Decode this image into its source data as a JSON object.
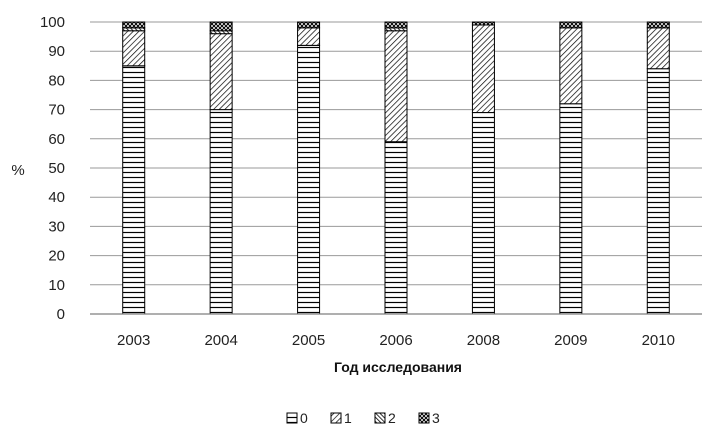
{
  "chart_data": {
    "type": "bar",
    "stacked": true,
    "categories": [
      "2003",
      "2004",
      "2005",
      "2006",
      "2008",
      "2009",
      "2010"
    ],
    "series": [
      {
        "name": "0",
        "pattern": "horizontal-lines",
        "values": [
          85,
          70,
          92,
          59,
          69,
          72,
          84
        ]
      },
      {
        "name": "1",
        "pattern": "diagonal-lines",
        "values": [
          12,
          26,
          6,
          38,
          30,
          26,
          14
        ]
      },
      {
        "name": "2",
        "pattern": "dense-diagonal",
        "values": [
          1,
          1,
          0,
          1,
          0,
          0,
          0
        ]
      },
      {
        "name": "3",
        "pattern": "crosshatch",
        "values": [
          2,
          3,
          2,
          2,
          1,
          2,
          2
        ]
      }
    ],
    "xlabel": "Год исследования",
    "ylabel": "%",
    "ylim": [
      0,
      100
    ],
    "yticks": [
      0,
      10,
      20,
      30,
      40,
      50,
      60,
      70,
      80,
      90,
      100
    ],
    "grid": true,
    "legend_position": "bottom",
    "colors": {
      "stroke": "#000000",
      "grid": "#9a9a9a",
      "axis": "#7f7f7f",
      "fill": "#ffffff"
    }
  }
}
